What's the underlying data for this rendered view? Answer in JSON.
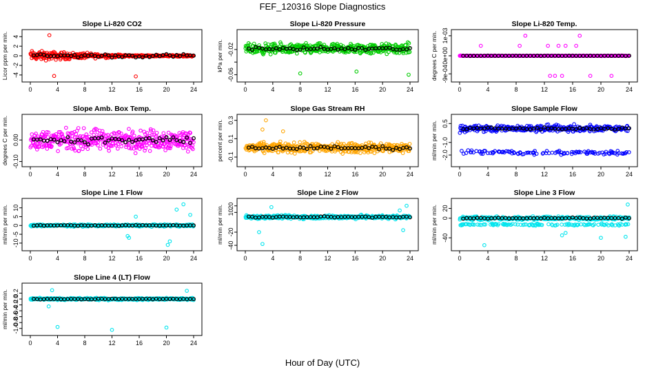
{
  "figure": {
    "title": "FEF_120316  Slope Diagnostics",
    "xlabel": "Hour of Day (UTC)"
  },
  "chart_data": [
    {
      "type": "scatter",
      "title": "Slope Li-820 CO2",
      "ylabel": "Licor ppm per min.",
      "xlim": [
        0,
        24
      ],
      "ylim": [
        -4.6,
        4.6
      ],
      "xticks": [
        "0",
        "4",
        "8",
        "12",
        "16",
        "20",
        "24"
      ],
      "yticks": [
        {
          "v": -4,
          "label": "-4"
        },
        {
          "v": -2,
          "label": "-2"
        },
        {
          "v": 0,
          "label": "0"
        },
        {
          "v": 2,
          "label": "2"
        },
        {
          "v": 4,
          "label": "4"
        }
      ],
      "colors": {
        "scatter": "#ff0000",
        "reference": "#000000"
      },
      "pattern": {
        "base": 0,
        "spread": 1.5,
        "decay": true,
        "outliers": [
          [
            2.8,
            4.3
          ],
          [
            3.5,
            -4.2
          ],
          [
            15.5,
            -4.3
          ]
        ]
      },
      "series": [
        {
          "values_note": ""
        }
      ]
    },
    {
      "type": "scatter",
      "title": "Slope Li-820 Pressure",
      "ylabel": "kPa per min.",
      "xlim": [
        0,
        24
      ],
      "ylim": [
        -0.065,
        0.005
      ],
      "xticks": [
        "0",
        "4",
        "8",
        "12",
        "16",
        "20",
        "24"
      ],
      "yticks": [
        {
          "v": -0.06,
          "label": "-0.06"
        },
        {
          "v": -0.04,
          "label": ""
        },
        {
          "v": -0.02,
          "label": "-0.02"
        }
      ],
      "colors": {
        "scatter": "#00cc00",
        "reference": "#000000"
      },
      "pattern": {
        "base": -0.019,
        "spread": 0.012,
        "outliers": [
          [
            8.0,
            -0.058
          ],
          [
            16.2,
            -0.055
          ],
          [
            23.8,
            -0.06
          ]
        ]
      }
    },
    {
      "type": "scatter",
      "title": "Slope Li-820 Temp.",
      "ylabel": "degrees C per min.",
      "xlim": [
        0,
        24
      ],
      "ylim": [
        -0.0011,
        0.0011
      ],
      "xticks": [
        "0",
        "4",
        "8",
        "12",
        "16",
        "20",
        "24"
      ],
      "yticks": [
        {
          "v": -0.0009,
          "label": "-9e-04"
        },
        {
          "v": 0,
          "label": "0e+00"
        },
        {
          "v": 0.001,
          "label": "1e-03"
        }
      ],
      "colors": {
        "scatter": "#ff00ff",
        "reference": "#000000"
      },
      "pattern": {
        "base": 0,
        "spread": 2e-05,
        "outliers": [
          [
            3.0,
            0.0005
          ],
          [
            9.3,
            0.001
          ],
          [
            17.0,
            0.001
          ],
          [
            12.5,
            0.0005
          ],
          [
            14.0,
            0.0005
          ],
          [
            15.0,
            0.0005
          ],
          [
            16.5,
            0.0005
          ],
          [
            8.5,
            0.0005
          ],
          [
            12.8,
            -0.001
          ],
          [
            13.5,
            -0.001
          ],
          [
            14.5,
            -0.001
          ],
          [
            18.5,
            -0.001
          ],
          [
            21.5,
            -0.001
          ]
        ]
      }
    },
    {
      "type": "scatter",
      "title": "Slope Amb. Box Temp.",
      "ylabel": "degrees C per min.",
      "xlim": [
        0,
        24
      ],
      "ylim": [
        -0.105,
        0.1
      ],
      "xticks": [
        "0",
        "4",
        "8",
        "12",
        "16",
        "20",
        "24"
      ],
      "yticks": [
        {
          "v": -0.1,
          "label": "-0.10"
        },
        {
          "v": 0,
          "label": "0.00"
        }
      ],
      "colors": {
        "scatter": "#ff00ff",
        "reference": "#000000"
      },
      "pattern": {
        "base": 0,
        "spread": 0.07
      }
    },
    {
      "type": "scatter",
      "title": "Slope Gas Stream RH",
      "ylabel": "percent per min.",
      "xlim": [
        0,
        24
      ],
      "ylim": [
        -0.16,
        0.32
      ],
      "xticks": [
        "0",
        "4",
        "8",
        "12",
        "16",
        "20",
        "24"
      ],
      "yticks": [
        {
          "v": -0.1,
          "label": "-0.1"
        },
        {
          "v": 0.1,
          "label": "0.1"
        },
        {
          "v": 0.3,
          "label": "0.3"
        }
      ],
      "colors": {
        "scatter": "#ffa500",
        "reference": "#000000"
      },
      "pattern": {
        "base": 0,
        "spread": 0.08,
        "outliers": [
          [
            3.0,
            0.3
          ],
          [
            2.5,
            0.2
          ],
          [
            5.5,
            0.18
          ]
        ]
      }
    },
    {
      "type": "scatter",
      "title": "Slope Sample Flow",
      "ylabel": "ml/min per min.",
      "xlim": [
        0,
        24
      ],
      "ylim": [
        -2.6,
        0.9
      ],
      "xticks": [
        "0",
        "4",
        "8",
        "12",
        "16",
        "20",
        "24"
      ],
      "yticks": [
        {
          "v": -2,
          "label": "-2.0"
        },
        {
          "v": -1,
          "label": "-1.0"
        },
        {
          "v": 0.5,
          "label": "0.5"
        }
      ],
      "colors": {
        "scatter": "#0000ff",
        "reference": "#000000"
      },
      "pattern": {
        "base": 0.1,
        "spread": 0.4,
        "band2": -1.8
      }
    },
    {
      "type": "scatter",
      "title": "Slope Line 1 Flow",
      "ylabel": "ml/min per min.",
      "xlim": [
        0,
        24
      ],
      "ylim": [
        -12,
        13
      ],
      "xticks": [
        "0",
        "4",
        "8",
        "12",
        "16",
        "20",
        "24"
      ],
      "yticks": [
        {
          "v": -10,
          "label": "-10"
        },
        {
          "v": -5,
          "label": "-5"
        },
        {
          "v": 0,
          "label": "0"
        },
        {
          "v": 5,
          "label": "5"
        },
        {
          "v": 10,
          "label": "10"
        }
      ],
      "colors": {
        "scatter": "#00e5ee",
        "reference": "#000000"
      },
      "pattern": {
        "base": 0,
        "spread": 0.8,
        "outliers": [
          [
            14.5,
            -7
          ],
          [
            14.3,
            -6
          ],
          [
            20.5,
            -9
          ],
          [
            20.2,
            -11
          ],
          [
            21.5,
            9
          ],
          [
            22.5,
            12
          ],
          [
            23.5,
            6
          ],
          [
            15.5,
            5
          ]
        ]
      }
    },
    {
      "type": "scatter",
      "title": "Slope Line 2 Flow",
      "ylabel": "ml/min per min.",
      "xlim": [
        0,
        24
      ],
      "ylim": [
        -42,
        25
      ],
      "xticks": [
        "0",
        "4",
        "8",
        "12",
        "16",
        "20",
        "24"
      ],
      "yticks": [
        {
          "v": -40,
          "label": "-40"
        },
        {
          "v": -20,
          "label": "-20"
        },
        {
          "v": 10,
          "label": "10"
        },
        {
          "v": 20,
          "label": "20"
        }
      ],
      "colors": {
        "scatter": "#00e5ee",
        "reference": "#000000"
      },
      "pattern": {
        "base": 3,
        "spread": 4,
        "outliers": [
          [
            2.0,
            -20
          ],
          [
            2.5,
            -38
          ],
          [
            23.0,
            -17
          ],
          [
            23.5,
            20
          ],
          [
            22.5,
            13
          ],
          [
            3.8,
            18
          ]
        ]
      }
    },
    {
      "type": "scatter",
      "title": "Slope Line 3 Flow",
      "ylabel": "ml/min per min.",
      "xlim": [
        0,
        24
      ],
      "ylim": [
        -58,
        32
      ],
      "xticks": [
        "0",
        "4",
        "8",
        "12",
        "16",
        "20",
        "24"
      ],
      "yticks": [
        {
          "v": -40,
          "label": "-40"
        },
        {
          "v": 0,
          "label": "0"
        },
        {
          "v": 20,
          "label": "20"
        }
      ],
      "colors": {
        "scatter": "#00e5ee",
        "reference": "#000000"
      },
      "pattern": {
        "base": 0,
        "spread": 5,
        "band2": -13,
        "outliers": [
          [
            3.5,
            -55
          ],
          [
            20.0,
            -40
          ],
          [
            23.5,
            -38
          ],
          [
            23.8,
            28
          ],
          [
            14.5,
            -35
          ],
          [
            15.0,
            -30
          ]
        ]
      }
    },
    {
      "type": "scatter",
      "title": "Slope Line 4 (LT) Flow",
      "ylabel": "ml/min per min.",
      "xlim": [
        0,
        24
      ],
      "ylim": [
        -1.1,
        0.4
      ],
      "xticks": [
        "0",
        "4",
        "8",
        "12",
        "16",
        "20",
        "24"
      ],
      "yticks": [
        {
          "v": -1,
          "label": "-1.0"
        },
        {
          "v": -0.8,
          "label": "-0.8"
        },
        {
          "v": -0.6,
          "label": "-0.6"
        },
        {
          "v": -0.4,
          "label": "-0.4"
        },
        {
          "v": -0.2,
          "label": "-0.2"
        },
        {
          "v": 0,
          "label": "0.0"
        },
        {
          "v": 0.2,
          "label": "0.2"
        }
      ],
      "colors": {
        "scatter": "#00e5ee",
        "reference": "#000000"
      },
      "pattern": {
        "base": 0,
        "spread": 0.05,
        "outliers": [
          [
            4.0,
            -0.95
          ],
          [
            12.0,
            -1.05
          ],
          [
            20.0,
            -0.97
          ],
          [
            3.2,
            0.3
          ],
          [
            23.0,
            0.28
          ],
          [
            2.7,
            -0.25
          ]
        ]
      }
    }
  ]
}
